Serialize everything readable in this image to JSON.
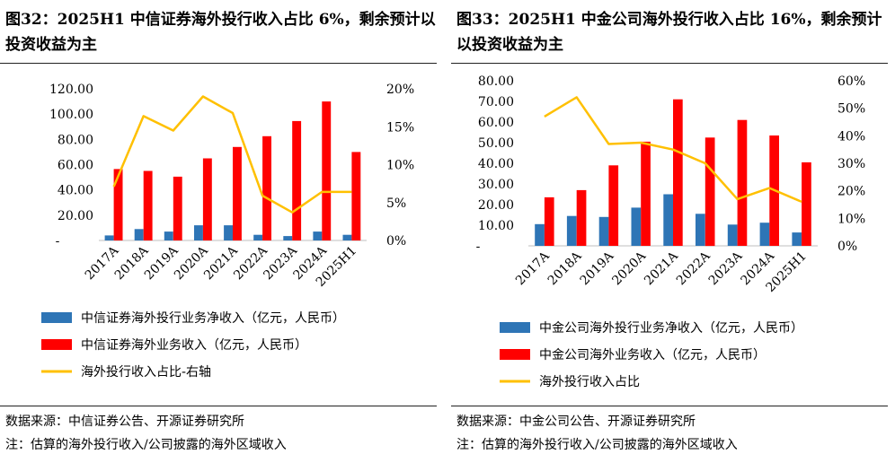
{
  "colors": {
    "blue": "#2E75B6",
    "red": "#FF0000",
    "yellow": "#FFC000"
  },
  "panels": [
    {
      "title": "图32：2025H1 中信证券海外投行收入占比 6%，剩余预计以投资收益为主",
      "source": "数据来源：中信证券公告、开源证券研究所",
      "note": "注：估算的海外投行收入/公司披露的海外区域收入",
      "chart_data": {
        "type": "bar",
        "categories": [
          "2017A",
          "2018A",
          "2019A",
          "2020A",
          "2021A",
          "2022A",
          "2023A",
          "2024A",
          "2025H1"
        ],
        "series": [
          {
            "name": "中信证券海外投行业务净收入（亿元，人民币）",
            "kind": "bar",
            "color": "#2E75B6",
            "values": [
              4,
              9,
              7,
              12,
              12,
              4.5,
              3.5,
              7,
              4.5
            ]
          },
          {
            "name": "中信证券海外业务收入（亿元，人民币）",
            "kind": "bar",
            "color": "#FF0000",
            "values": [
              56.5,
              55,
              50.5,
              65,
              74,
              82.5,
              94.5,
              110,
              70
            ]
          },
          {
            "name": "海外投行收入占比-右轴",
            "kind": "line",
            "axis": "right",
            "color": "#FFC000",
            "values": [
              7.1,
              16.4,
              14.5,
              19,
              16.8,
              5.9,
              3.7,
              6.4,
              6.4
            ]
          }
        ],
        "ylim": [
          0,
          120
        ],
        "yticks": [
          "-",
          "20.00",
          "40.00",
          "60.00",
          "80.00",
          "100.00",
          "120.00"
        ],
        "y2lim": [
          0,
          20
        ],
        "y2ticks": [
          "0%",
          "5%",
          "10%",
          "15%",
          "20%"
        ]
      }
    },
    {
      "title": "图33：2025H1 中金公司海外投行收入占比 16%，剩余预计以投资收益为主",
      "source": "数据来源：中金公司公告、开源证券研究所",
      "note": "注：估算的海外投行收入/公司披露的海外区域收入",
      "chart_data": {
        "type": "bar",
        "categories": [
          "2017A",
          "2018A",
          "2019A",
          "2020A",
          "2021A",
          "2022A",
          "2023A",
          "2024A",
          "2025H1"
        ],
        "series": [
          {
            "name": "中金公司海外投行业务净收入（亿元，人民币）",
            "kind": "bar",
            "color": "#2E75B6",
            "values": [
              10.5,
              14.5,
              14,
              18.5,
              25,
              15.5,
              10.3,
              11.2,
              6.5
            ]
          },
          {
            "name": "中金公司海外业务收入（亿元，人民币）",
            "kind": "bar",
            "color": "#FF0000",
            "values": [
              23.5,
              27,
              39,
              50.5,
              71,
              52.5,
              61,
              53.5,
              40.5
            ]
          },
          {
            "name": "海外投行收入占比",
            "kind": "line",
            "axis": "right",
            "color": "#FFC000",
            "values": [
              47,
              54,
              37,
              37.5,
              35,
              30,
              17,
              21,
              16
            ]
          }
        ],
        "ylim": [
          0,
          80
        ],
        "yticks": [
          "-",
          "10.00",
          "20.00",
          "30.00",
          "40.00",
          "50.00",
          "60.00",
          "70.00",
          "80.00"
        ],
        "y2lim": [
          0,
          60
        ],
        "y2ticks": [
          "0%",
          "10%",
          "20%",
          "30%",
          "40%",
          "50%",
          "60%"
        ]
      }
    }
  ]
}
